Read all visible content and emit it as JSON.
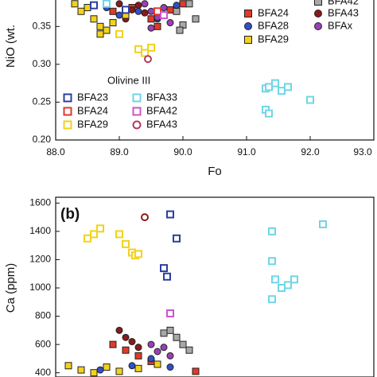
{
  "chart_data": [
    {
      "type": "scatter",
      "ylabel": "NiO (wt.",
      "xlabel": "Fo",
      "xlim": [
        88,
        93
      ],
      "ylim": [
        0.2,
        0.385
      ],
      "xticks": [
        {
          "value": 88,
          "label": "88.0"
        },
        {
          "value": 89,
          "label": "89.0"
        },
        {
          "value": 90,
          "label": "90.0"
        },
        {
          "value": 91,
          "label": "91.0"
        },
        {
          "value": 92,
          "label": "92.0"
        },
        {
          "value": 93,
          "label": "93.0"
        }
      ],
      "yticks": [
        {
          "value": 0.2,
          "label": "0.20"
        },
        {
          "value": 0.25,
          "label": "0.25"
        },
        {
          "value": 0.3,
          "label": "0.30"
        },
        {
          "value": 0.35,
          "label": "0.35"
        }
      ],
      "legend2_title": "Olivine III",
      "series": [
        {
          "name": "BFA42",
          "color": "#a8a8a8",
          "marker": "square",
          "fill": true,
          "x": [
            89.9,
            90.0,
            90.2,
            90.1,
            89.95
          ],
          "values": [
            0.37,
            0.352,
            0.36,
            0.38,
            0.345
          ]
        },
        {
          "name": "BFA24",
          "color": "#e03a2a",
          "marker": "square",
          "fill": true,
          "x": [
            88.9,
            89.2,
            89.5,
            89.8,
            90.0,
            89.6
          ],
          "values": [
            0.37,
            0.375,
            0.36,
            0.372,
            0.38,
            0.35
          ]
        },
        {
          "name": "BFA43",
          "color": "#8b1a1a",
          "marker": "circle",
          "fill": true,
          "x": [
            89.0,
            89.2,
            89.3,
            89.4,
            89.1
          ],
          "values": [
            0.38,
            0.372,
            0.378,
            0.368,
            0.36
          ]
        },
        {
          "name": "BFA28",
          "color": "#3050c8",
          "marker": "circle",
          "fill": true,
          "x": [
            88.8,
            89.0,
            89.3,
            89.6,
            89.9
          ],
          "values": [
            0.375,
            0.365,
            0.37,
            0.36,
            0.378
          ]
        },
        {
          "name": "BFAx",
          "color": "#9b3fb8",
          "marker": "circle",
          "fill": true,
          "x": [
            89.4,
            89.5,
            89.6,
            89.7,
            89.8,
            89.5
          ],
          "values": [
            0.38,
            0.37,
            0.362,
            0.375,
            0.355,
            0.348
          ]
        },
        {
          "name": "BFA29",
          "color": "#f2d21b",
          "marker": "square",
          "fill": true,
          "x": [
            88.3,
            88.4,
            88.5,
            88.6,
            88.7,
            88.8,
            88.9,
            89.1,
            88.7
          ],
          "values": [
            0.38,
            0.37,
            0.375,
            0.36,
            0.35,
            0.345,
            0.355,
            0.365,
            0.34
          ]
        },
        {
          "name": "BFA23",
          "color": "#2a3fa0",
          "marker": "square",
          "fill": false,
          "x": [
            88.6,
            89.1
          ],
          "values": [
            0.378,
            0.372
          ]
        },
        {
          "name": "BFA33",
          "color": "#6fd6e6",
          "marker": "square",
          "fill": false,
          "x": [
            91.3,
            91.35,
            91.45,
            91.55,
            91.65,
            91.3,
            91.35,
            92.0,
            88.8
          ],
          "values": [
            0.268,
            0.27,
            0.275,
            0.265,
            0.27,
            0.24,
            0.235,
            0.253,
            0.38
          ]
        },
        {
          "name": "BFA24",
          "color": "#e03a2a",
          "marker": "square",
          "fill": false,
          "x": [
            89.6
          ],
          "values": [
            0.37
          ]
        },
        {
          "name": "BFA42",
          "color": "#cc55cc",
          "marker": "square",
          "fill": false,
          "x": [
            89.7
          ],
          "values": [
            0.365
          ]
        },
        {
          "name": "BFA29",
          "color": "#f2d21b",
          "marker": "square",
          "fill": false,
          "x": [
            89.3,
            89.4,
            89.5,
            89.0
          ],
          "values": [
            0.32,
            0.315,
            0.322,
            0.34
          ]
        },
        {
          "name": "BFA43",
          "color": "#b23a60",
          "marker": "circle",
          "fill": false,
          "x": [
            89.45
          ],
          "values": [
            0.307
          ]
        }
      ]
    },
    {
      "type": "scatter",
      "ylabel": "Ca (ppm)",
      "panel_label": "(b)",
      "xlim": [
        88,
        93
      ],
      "ylim": [
        370,
        1630
      ],
      "yticks": [
        400,
        600,
        800,
        1000,
        1200,
        1400,
        1600
      ],
      "series": [
        {
          "color": "#a8a8a8",
          "marker": "square",
          "fill": true,
          "x": [
            89.8,
            89.9,
            90.0,
            90.1,
            89.7
          ],
          "values": [
            700,
            650,
            600,
            560,
            680
          ]
        },
        {
          "color": "#e03a2a",
          "marker": "square",
          "fill": true,
          "x": [
            88.9,
            89.1,
            89.3,
            90.2,
            89.5
          ],
          "values": [
            600,
            560,
            520,
            410,
            480
          ]
        },
        {
          "color": "#8b1a1a",
          "marker": "circle",
          "fill": true,
          "x": [
            89.0,
            89.1,
            89.2,
            89.3
          ],
          "values": [
            700,
            650,
            620,
            580
          ]
        },
        {
          "color": "#3050c8",
          "marker": "circle",
          "fill": true,
          "x": [
            88.7,
            89.2,
            89.5,
            89.8
          ],
          "values": [
            420,
            450,
            500,
            440
          ]
        },
        {
          "color": "#9b3fb8",
          "marker": "circle",
          "fill": true,
          "x": [
            89.5,
            89.6,
            89.7,
            89.8
          ],
          "values": [
            600,
            550,
            580,
            520
          ]
        },
        {
          "color": "#f2d21b",
          "marker": "square",
          "fill": true,
          "x": [
            88.2,
            88.4,
            88.6,
            88.8,
            89.0,
            89.3,
            89.6
          ],
          "values": [
            450,
            420,
            400,
            440,
            410,
            430,
            460
          ]
        },
        {
          "color": "#2a3fa0",
          "marker": "square",
          "fill": false,
          "x": [
            89.8,
            89.9,
            89.7,
            89.75
          ],
          "values": [
            1520,
            1350,
            1140,
            1080
          ]
        },
        {
          "color": "#6fd6e6",
          "marker": "square",
          "fill": false,
          "x": [
            91.4,
            91.4,
            91.45,
            91.4,
            91.55,
            91.65,
            91.75,
            92.2
          ],
          "values": [
            1400,
            1190,
            1060,
            920,
            1000,
            1020,
            1060,
            1450
          ]
        },
        {
          "color": "#cc55cc",
          "marker": "square",
          "fill": false,
          "x": [
            89.8
          ],
          "values": [
            820
          ]
        },
        {
          "color": "#f2d21b",
          "marker": "square",
          "fill": false,
          "x": [
            88.6,
            88.7,
            89.0,
            89.1,
            89.2,
            89.25,
            89.3,
            88.5
          ],
          "values": [
            1380,
            1420,
            1380,
            1310,
            1250,
            1230,
            1240,
            1350
          ]
        },
        {
          "color": "#8b1a1a",
          "marker": "circle",
          "fill": false,
          "x": [
            89.4
          ],
          "values": [
            1500
          ]
        }
      ]
    }
  ]
}
